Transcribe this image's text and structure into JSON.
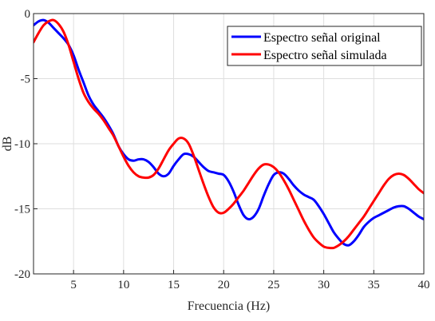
{
  "chart_data": {
    "type": "line",
    "xlabel": "Frecuencia (Hz)",
    "ylabel": "dB",
    "xlim": [
      1,
      40
    ],
    "ylim": [
      -20,
      0
    ],
    "xticks": [
      5,
      10,
      15,
      20,
      25,
      30,
      35,
      40
    ],
    "yticks": [
      0,
      -5,
      -10,
      -15,
      -20
    ],
    "grid": true,
    "legend_position": "top-right",
    "series": [
      {
        "name": "Espectro señal original",
        "color": "#0000ff",
        "x": [
          1,
          1.5,
          2,
          2.5,
          3,
          3.5,
          4,
          4.5,
          5,
          5.5,
          6,
          6.5,
          7,
          7.5,
          8,
          8.5,
          9,
          9.5,
          10,
          10.5,
          11,
          11.5,
          12,
          12.5,
          13,
          13.5,
          14,
          14.5,
          15,
          15.5,
          16,
          16.5,
          17,
          17.5,
          18,
          18.5,
          19,
          19.5,
          20,
          20.5,
          21,
          21.5,
          22,
          22.5,
          23,
          23.5,
          24,
          24.5,
          25,
          25.5,
          26,
          26.5,
          27,
          27.5,
          28,
          28.5,
          29,
          29.5,
          30,
          30.5,
          31,
          31.5,
          32,
          32.5,
          33,
          33.5,
          34,
          34.5,
          35,
          35.5,
          36,
          36.5,
          37,
          37.5,
          38,
          38.5,
          39,
          39.5,
          40
        ],
        "values": [
          -0.9,
          -0.6,
          -0.5,
          -0.7,
          -1.1,
          -1.5,
          -1.9,
          -2.4,
          -3.2,
          -4.3,
          -5.3,
          -6.3,
          -7.0,
          -7.5,
          -8.0,
          -8.6,
          -9.3,
          -10.2,
          -10.8,
          -11.2,
          -11.3,
          -11.2,
          -11.2,
          -11.4,
          -11.8,
          -12.3,
          -12.5,
          -12.3,
          -11.7,
          -11.2,
          -10.8,
          -10.8,
          -11.0,
          -11.4,
          -11.8,
          -12.1,
          -12.2,
          -12.3,
          -12.4,
          -12.9,
          -13.7,
          -14.7,
          -15.5,
          -15.8,
          -15.6,
          -15.0,
          -14.0,
          -13.1,
          -12.4,
          -12.2,
          -12.3,
          -12.7,
          -13.2,
          -13.6,
          -13.9,
          -14.1,
          -14.3,
          -14.8,
          -15.4,
          -16.1,
          -16.8,
          -17.3,
          -17.7,
          -17.8,
          -17.5,
          -17.0,
          -16.4,
          -16.0,
          -15.7,
          -15.5,
          -15.3,
          -15.1,
          -14.9,
          -14.8,
          -14.8,
          -15.0,
          -15.3,
          -15.6,
          -15.8
        ]
      },
      {
        "name": "Espectro señal simulada",
        "color": "#ff0000",
        "x": [
          1,
          1.5,
          2,
          2.5,
          3,
          3.5,
          4,
          4.5,
          5,
          5.5,
          6,
          6.5,
          7,
          7.5,
          8,
          8.5,
          9,
          9.5,
          10,
          10.5,
          11,
          11.5,
          12,
          12.5,
          13,
          13.5,
          14,
          14.5,
          15,
          15.5,
          16,
          16.5,
          17,
          17.5,
          18,
          18.5,
          19,
          19.5,
          20,
          20.5,
          21,
          21.5,
          22,
          22.5,
          23,
          23.5,
          24,
          24.5,
          25,
          25.5,
          26,
          26.5,
          27,
          27.5,
          28,
          28.5,
          29,
          29.5,
          30,
          30.5,
          31,
          31.5,
          32,
          32.5,
          33,
          33.5,
          34,
          34.5,
          35,
          35.5,
          36,
          36.5,
          37,
          37.5,
          38,
          38.5,
          39,
          39.5,
          40
        ],
        "values": [
          -2.2,
          -1.5,
          -0.9,
          -0.6,
          -0.5,
          -0.8,
          -1.4,
          -2.4,
          -3.7,
          -5.0,
          -6.1,
          -6.8,
          -7.3,
          -7.7,
          -8.2,
          -8.8,
          -9.4,
          -10.2,
          -11.0,
          -11.7,
          -12.2,
          -12.5,
          -12.6,
          -12.6,
          -12.4,
          -11.9,
          -11.2,
          -10.5,
          -10.0,
          -9.6,
          -9.6,
          -10.0,
          -10.9,
          -12.0,
          -13.1,
          -14.1,
          -14.9,
          -15.3,
          -15.3,
          -15.0,
          -14.6,
          -14.1,
          -13.6,
          -13.0,
          -12.4,
          -11.9,
          -11.6,
          -11.6,
          -11.8,
          -12.2,
          -12.8,
          -13.5,
          -14.3,
          -15.1,
          -15.9,
          -16.6,
          -17.2,
          -17.6,
          -17.9,
          -18.0,
          -18.0,
          -17.8,
          -17.5,
          -17.1,
          -16.6,
          -16.1,
          -15.6,
          -15.0,
          -14.4,
          -13.8,
          -13.2,
          -12.7,
          -12.4,
          -12.3,
          -12.4,
          -12.7,
          -13.1,
          -13.5,
          -13.8
        ]
      }
    ]
  }
}
